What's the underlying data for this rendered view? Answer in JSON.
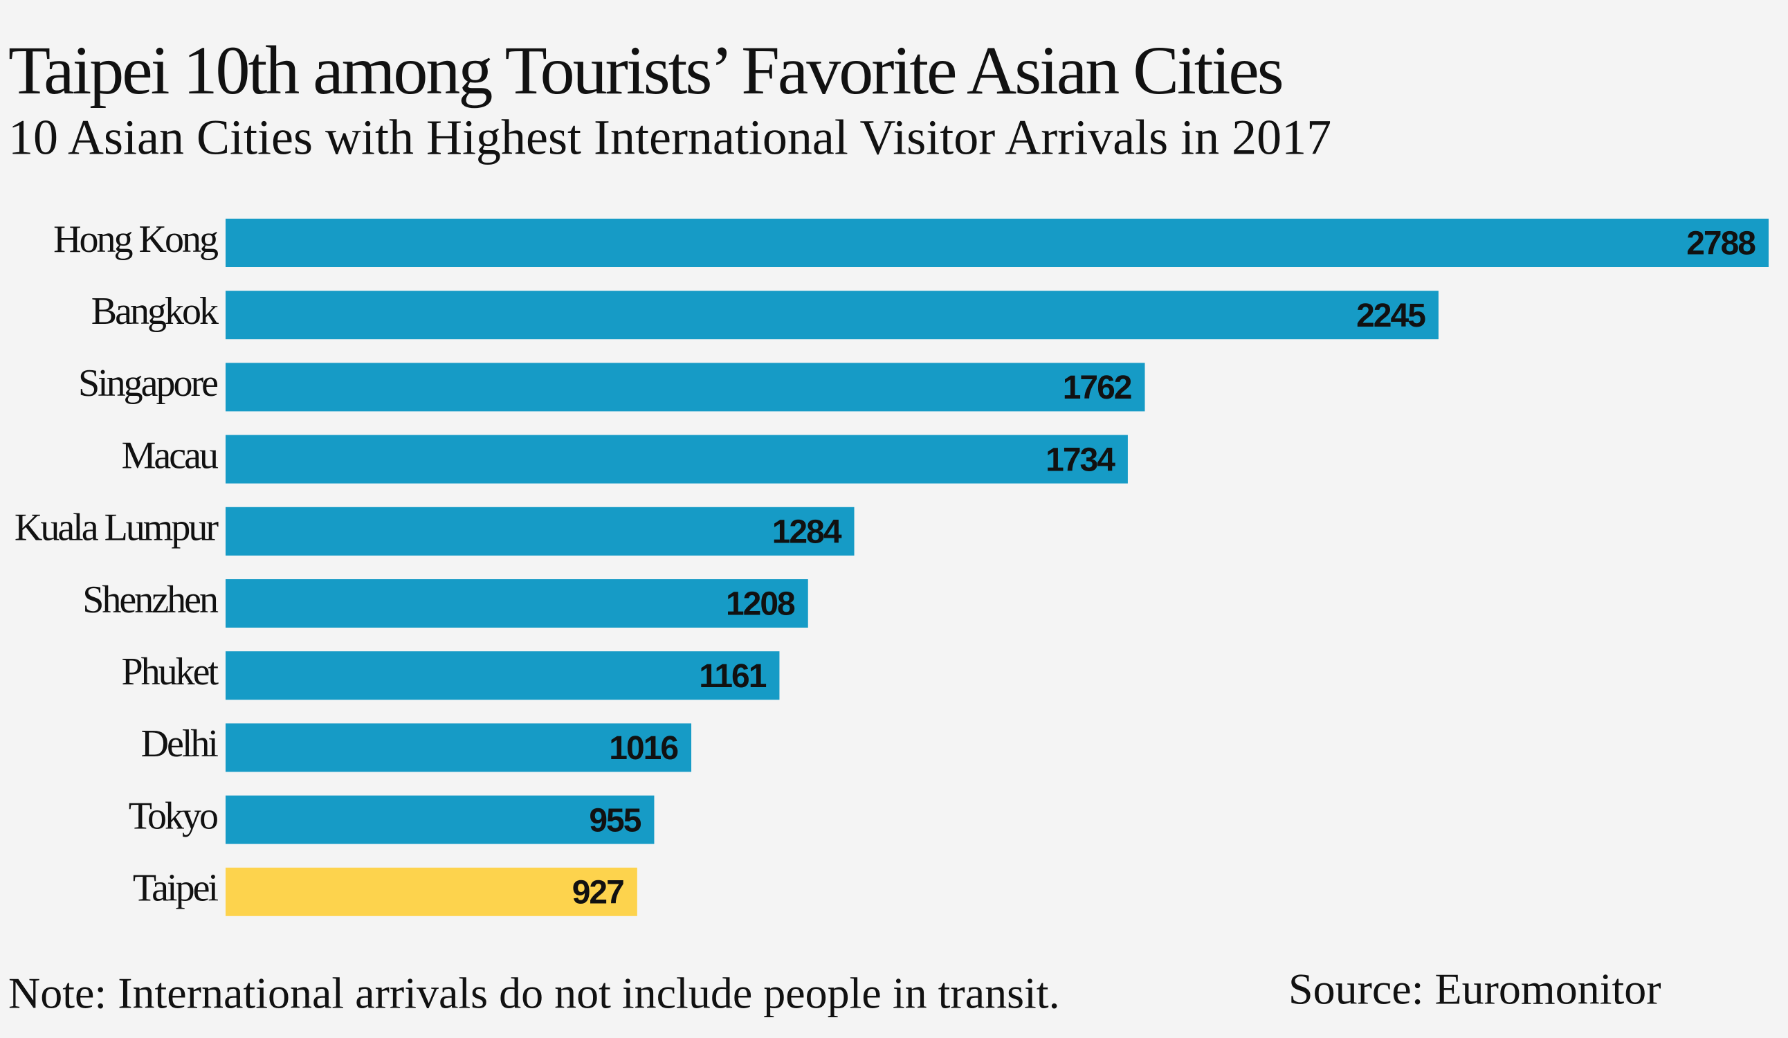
{
  "chart_data": {
    "type": "bar",
    "orientation": "horizontal",
    "title": "Taipei 10th among Tourists’ Favorite Asian Cities",
    "subtitle": "10 Asian Cities with Highest International Visitor Arrivals in 2017",
    "categories": [
      "Hong Kong",
      "Bangkok",
      "Singapore",
      "Macau",
      "Kuala Lumpur",
      "Shenzhen",
      "Phuket",
      "Delhi",
      "Tokyo",
      "Taipei"
    ],
    "values": [
      2788,
      2245,
      1762,
      1734,
      1284,
      1208,
      1161,
      1016,
      955,
      927
    ],
    "colors": [
      "#169bc6",
      "#169bc6",
      "#169bc6",
      "#169bc6",
      "#169bc6",
      "#169bc6",
      "#169bc6",
      "#169bc6",
      "#169bc6",
      "#fdd34d"
    ],
    "xlim": [
      250,
      2788
    ],
    "note": "Note: International arrivals do not include people in transit.",
    "source": "Source: Euromonitor"
  }
}
